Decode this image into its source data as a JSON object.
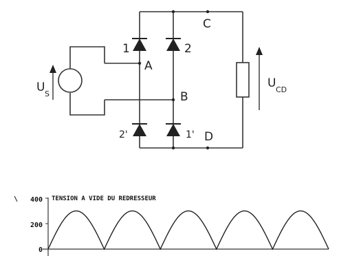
{
  "circuit": {
    "nodes": {
      "a": "A",
      "b": "B",
      "c": "C",
      "d": "D"
    },
    "diodes": {
      "d1": "1",
      "d2": "2",
      "d2p": "2'",
      "d1p": "1'"
    },
    "source_label": {
      "main": "U",
      "sub": "S"
    },
    "load_label": {
      "main": "U",
      "sub": "CD"
    },
    "stray_mark": "\\"
  },
  "chart_data": {
    "type": "line",
    "title": "TENSION A VIDE DU REDRESSEUR",
    "xlabel": "",
    "ylabel": "",
    "ylim": [
      0,
      400
    ],
    "yticks": [
      "0",
      "200",
      "400"
    ],
    "series": [
      {
        "amplitude": 300,
        "periods_shown": 5
      }
    ]
  }
}
